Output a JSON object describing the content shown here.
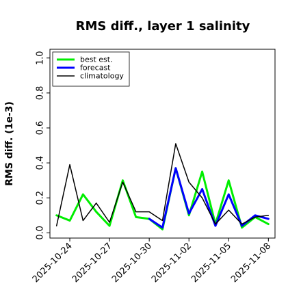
{
  "chart_data": {
    "type": "line",
    "title": "RMS diff., layer 1 salinity",
    "xlabel": "",
    "ylabel": "RMS diff. (1e-3)",
    "ylim": [
      -0.03,
      1.05
    ],
    "yticks": [
      0.0,
      0.2,
      0.4,
      0.6,
      0.8,
      1.0
    ],
    "ytick_labels": [
      "0.0",
      "0.2",
      "0.4",
      "0.6",
      "0.8",
      "1.0"
    ],
    "x": [
      "2025-10-23",
      "2025-10-24",
      "2025-10-25",
      "2025-10-26",
      "2025-10-27",
      "2025-10-28",
      "2025-10-29",
      "2025-10-30",
      "2025-10-31",
      "2025-11-01",
      "2025-11-02",
      "2025-11-03",
      "2025-11-04",
      "2025-11-05",
      "2025-11-06",
      "2025-11-07",
      "2025-11-08"
    ],
    "xlim": [
      "2025-10-22T12:00",
      "2025-11-08T12:00"
    ],
    "xticks": [
      "2025-10-24",
      "2025-10-27",
      "2025-10-30",
      "2025-11-02",
      "2025-11-05",
      "2025-11-08"
    ],
    "xtick_labels": [
      "2025-10-24",
      "2025-10-27",
      "2025-10-30",
      "2025-11-02",
      "2025-11-05",
      "2025-11-08"
    ],
    "highlight_tick": "2025-10-30",
    "highlight_color": "#228B22",
    "grid": false,
    "legend_position": "top-left",
    "series": [
      {
        "name": "best est.",
        "color": "#00ee00",
        "width": 3,
        "values": [
          0.1,
          0.07,
          0.22,
          0.12,
          0.04,
          0.3,
          0.09,
          0.08,
          0.02,
          0.37,
          0.1,
          0.35,
          0.05,
          0.3,
          0.03,
          0.09,
          0.05
        ]
      },
      {
        "name": "forecast",
        "color": "#0000ff",
        "width": 3,
        "values": [
          null,
          null,
          null,
          null,
          null,
          null,
          null,
          0.08,
          0.03,
          0.37,
          0.11,
          0.25,
          0.04,
          0.22,
          0.04,
          0.1,
          0.08
        ]
      },
      {
        "name": "climatology",
        "color": "#000000",
        "width": 1.5,
        "values": [
          0.04,
          0.39,
          0.07,
          0.17,
          0.06,
          0.29,
          0.12,
          0.12,
          0.07,
          0.51,
          0.29,
          0.2,
          0.05,
          0.13,
          0.05,
          0.09,
          0.1
        ]
      }
    ]
  }
}
